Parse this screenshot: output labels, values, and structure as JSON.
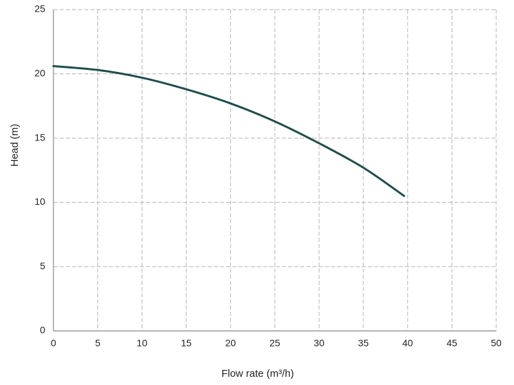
{
  "chart_data": {
    "type": "line",
    "x_label": "Flow rate (m³/h)",
    "y_label": "Head (m)",
    "x": [
      0,
      5,
      10,
      15,
      20,
      25,
      30,
      35,
      39.6
    ],
    "values": [
      20.6,
      20.3,
      19.7,
      18.8,
      17.7,
      16.3,
      14.6,
      12.7,
      10.5
    ],
    "color": "#1f4e4a",
    "xlim": [
      0,
      50
    ],
    "xticks": [
      0,
      5,
      10,
      15,
      20,
      25,
      30,
      35,
      40,
      45,
      50
    ],
    "ylim": [
      0,
      25
    ],
    "yticks": [
      0,
      5,
      10,
      15,
      20,
      25
    ],
    "grid": true
  }
}
